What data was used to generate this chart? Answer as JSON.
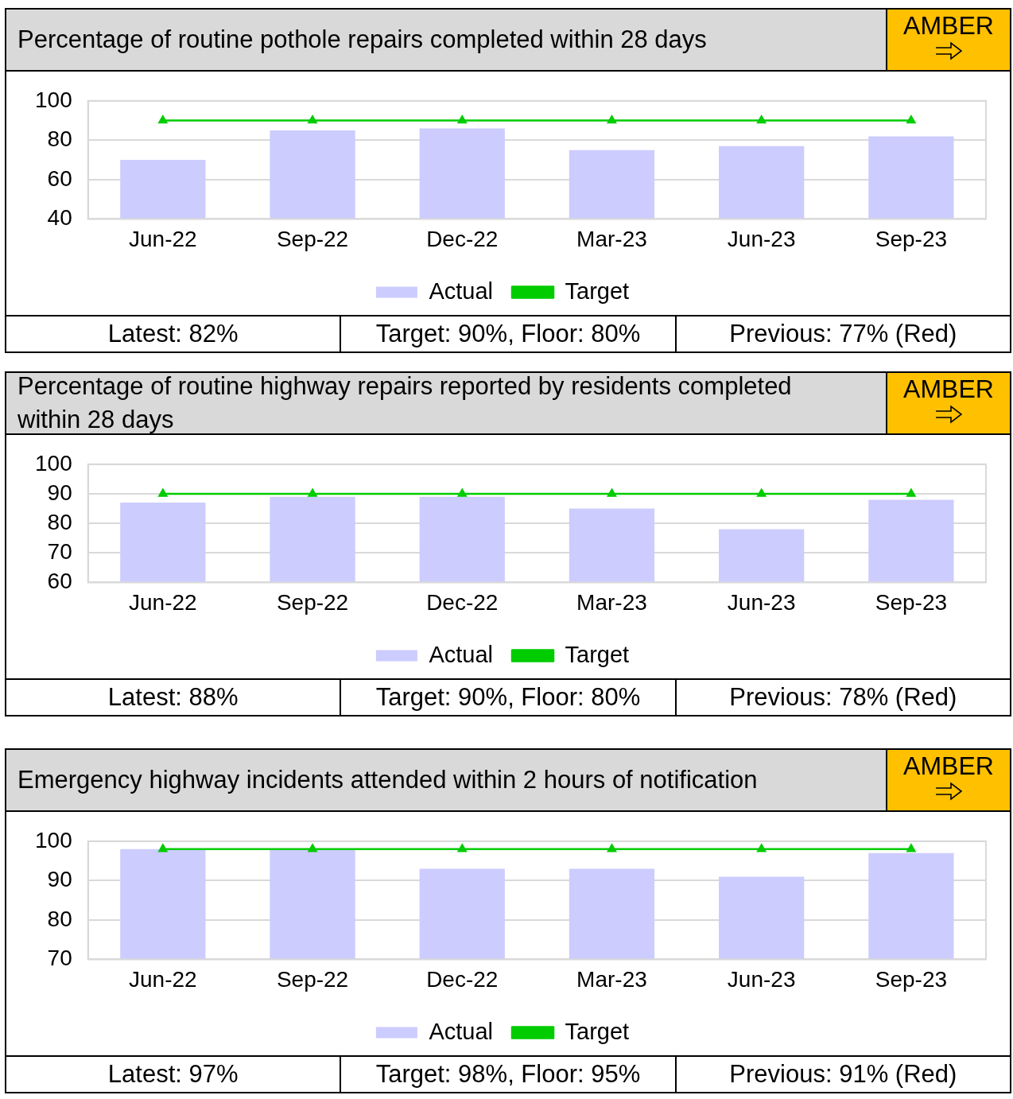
{
  "chart_data": [
    {
      "type": "bar",
      "title": "Percentage of routine pothole repairs completed within 28 days",
      "categories": [
        "Jun-22",
        "Sep-22",
        "Dec-22",
        "Mar-23",
        "Jun-23",
        "Sep-23"
      ],
      "series": [
        {
          "name": "Actual",
          "color": "#ccccff",
          "values": [
            70,
            85,
            86,
            75,
            77,
            82
          ]
        },
        {
          "name": "Target",
          "type": "line",
          "color": "#00cc00",
          "values": [
            90,
            90,
            90,
            90,
            90,
            90
          ]
        }
      ],
      "ylim": [
        40,
        100
      ],
      "yticks": [
        40,
        60,
        80,
        100
      ],
      "grid": "y",
      "legend": "bottom",
      "marker": "triangle",
      "annotations": [
        "AMBER",
        "Latest: 82%",
        "Target: 90%, Floor: 80%",
        "Previous: 77% (Red)"
      ]
    },
    {
      "type": "bar",
      "title": "Percentage of routine highway repairs reported by residents completed within 28 days",
      "categories": [
        "Jun-22",
        "Sep-22",
        "Dec-22",
        "Mar-23",
        "Jun-23",
        "Sep-23"
      ],
      "series": [
        {
          "name": "Actual",
          "color": "#ccccff",
          "values": [
            87,
            89,
            89,
            85,
            78,
            88
          ]
        },
        {
          "name": "Target",
          "type": "line",
          "color": "#00cc00",
          "values": [
            90,
            90,
            90,
            90,
            90,
            90
          ]
        }
      ],
      "ylim": [
        60,
        100
      ],
      "yticks": [
        60,
        70,
        80,
        90,
        100
      ],
      "grid": "y",
      "legend": "bottom",
      "marker": "triangle",
      "annotations": [
        "AMBER",
        "Latest: 88%",
        "Target: 90%, Floor: 80%",
        "Previous: 78% (Red)"
      ]
    },
    {
      "type": "bar",
      "title": "Emergency highway incidents attended within 2 hours of notification",
      "categories": [
        "Jun-22",
        "Sep-22",
        "Dec-22",
        "Mar-23",
        "Jun-23",
        "Sep-23"
      ],
      "series": [
        {
          "name": "Actual",
          "color": "#ccccff",
          "values": [
            98,
            98,
            93,
            93,
            91,
            97
          ]
        },
        {
          "name": "Target",
          "type": "line",
          "color": "#00cc00",
          "values": [
            98,
            98,
            98,
            98,
            98,
            98
          ]
        }
      ],
      "ylim": [
        70,
        100
      ],
      "yticks": [
        70,
        80,
        90,
        100
      ],
      "grid": "y",
      "legend": "bottom",
      "marker": "triangle",
      "annotations": [
        "AMBER",
        "Latest: 97%",
        "Target: 98%, Floor: 95%",
        "Previous: 91% (Red)"
      ]
    }
  ]
}
